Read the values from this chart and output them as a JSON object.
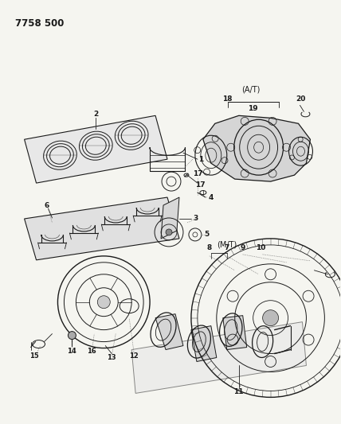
{
  "title": "7758 500",
  "bg_color": "#f5f5f0",
  "line_color": "#1a1a1a",
  "text_color": "#1a1a1a",
  "figsize": [
    4.28,
    5.33
  ],
  "dpi": 100,
  "at_label": "(A/T)",
  "mt_label": "(M/T)"
}
